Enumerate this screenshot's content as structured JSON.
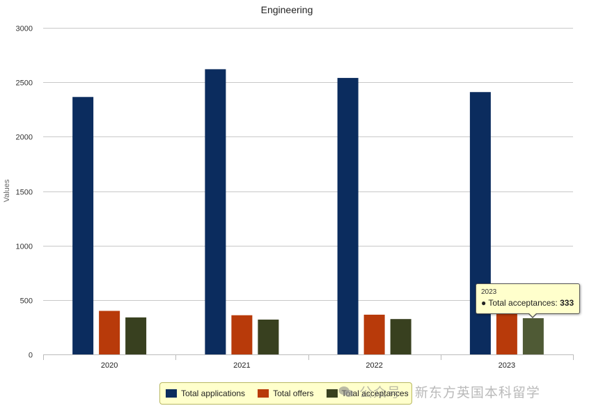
{
  "chart_data": {
    "type": "bar",
    "title": "Engineering",
    "ylabel": "Values",
    "xlabel": "",
    "ylim": [
      0,
      3000
    ],
    "yticks": [
      0,
      500,
      1000,
      1500,
      2000,
      2500,
      3000
    ],
    "grid": true,
    "legend_position": "bottom-center",
    "categories": [
      "2020",
      "2021",
      "2022",
      "2023"
    ],
    "series": [
      {
        "name": "Total applications",
        "color": "#0b2c5e",
        "values": [
          2365,
          2620,
          2540,
          2410
        ]
      },
      {
        "name": "Total offers",
        "color": "#b83a0a",
        "values": [
          400,
          360,
          365,
          380
        ]
      },
      {
        "name": "Total acceptances",
        "color": "#38401f",
        "values": [
          340,
          320,
          325,
          333
        ]
      }
    ],
    "highlight": {
      "series": 2,
      "category": 3,
      "color": "#4f5a35"
    },
    "tooltip": {
      "year": "2023",
      "label": "Total acceptances:",
      "value": "333"
    }
  },
  "watermark": {
    "text": "公众号 · 新东方英国本科留学",
    "icon": "wechat-icon"
  }
}
